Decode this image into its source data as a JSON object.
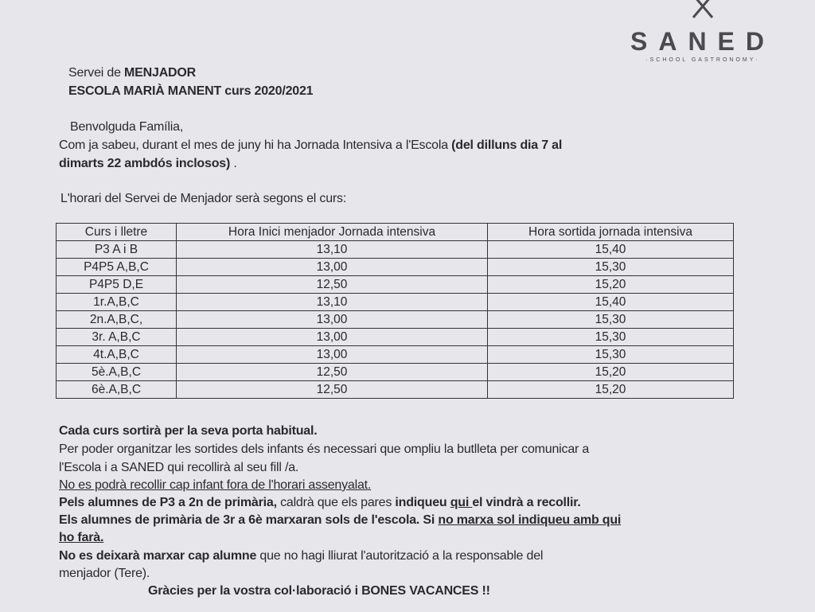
{
  "logo": {
    "name": "SANED",
    "tagline": "·SCHOOL GASTRONOMY·",
    "icon": "crossed-utensils-icon"
  },
  "heading": {
    "line1_a": "Servei de ",
    "line1_b": "MENJADOR",
    "line2": "ESCOLA MARIÀ MANENT curs 2020/2021"
  },
  "intro": {
    "greeting": "Benvolguda Família,",
    "p1_a": "Com ja sabeu, durant el mes de juny hi ha Jornada Intensiva a l'Escola ",
    "p1_b": "(del dilluns dia 7 al",
    "p1_c": "dimarts 22 ambdós inclosos)",
    "p1_d": " .",
    "schedule_intro": "L'horari del Servei de Menjador serà segons el curs:"
  },
  "table": {
    "headers": [
      "Curs i lletre",
      "Hora Inici menjador Jornada intensiva",
      "Hora sortida jornada intensiva"
    ],
    "rows": [
      [
        "P3 A i B",
        "13,10",
        "15,40"
      ],
      [
        "P4P5 A,B,C",
        "13,00",
        "15,30"
      ],
      [
        "P4P5 D,E",
        "12,50",
        "15,20"
      ],
      [
        "1r.A,B,C",
        "13,10",
        "15,40"
      ],
      [
        "2n.A,B,C,",
        "13,00",
        "15,30"
      ],
      [
        "3r. A,B,C",
        "13,00",
        "15,30"
      ],
      [
        "4t.A,B,C",
        "13,00",
        "15,30"
      ],
      [
        "5è.A,B,C",
        "12,50",
        "15,20"
      ],
      [
        "6è.A,B,C",
        "12,50",
        "15,20"
      ]
    ]
  },
  "notes": {
    "n1": "Cada curs sortirà per la seva porta habitual.",
    "n2a": "Per poder organitzar les sortides dels infants és necessari que ompliu la butlleta per comunicar a",
    "n2b": "l'Escola i a SANED qui recollirà al seu fill /a.",
    "n3": "No es podrà recollir cap infant fora de l'horari assenyalat.",
    "n4a": "Pels alumnes de P3 a 2n de primària,",
    "n4b": " caldrà que els pares ",
    "n4c": "indiqueu ",
    "n4d": "qui ",
    "n4e": "el vindrà a recollir.",
    "n5a": "Els alumnes de primària de 3r a 6è marxaran sols de l'escola. Si ",
    "n5b": " no marxa sol indiqueu amb qui",
    "n5c": "ho farà.",
    "n6a": "No es deixarà marxar cap alumne",
    "n6b": " que no hagi lliurat l'autorització a la responsable del",
    "n6c": "menjador (Tere).",
    "closing": "Gràcies per la vostra col·laboració  i BONES VACANCES !!"
  }
}
